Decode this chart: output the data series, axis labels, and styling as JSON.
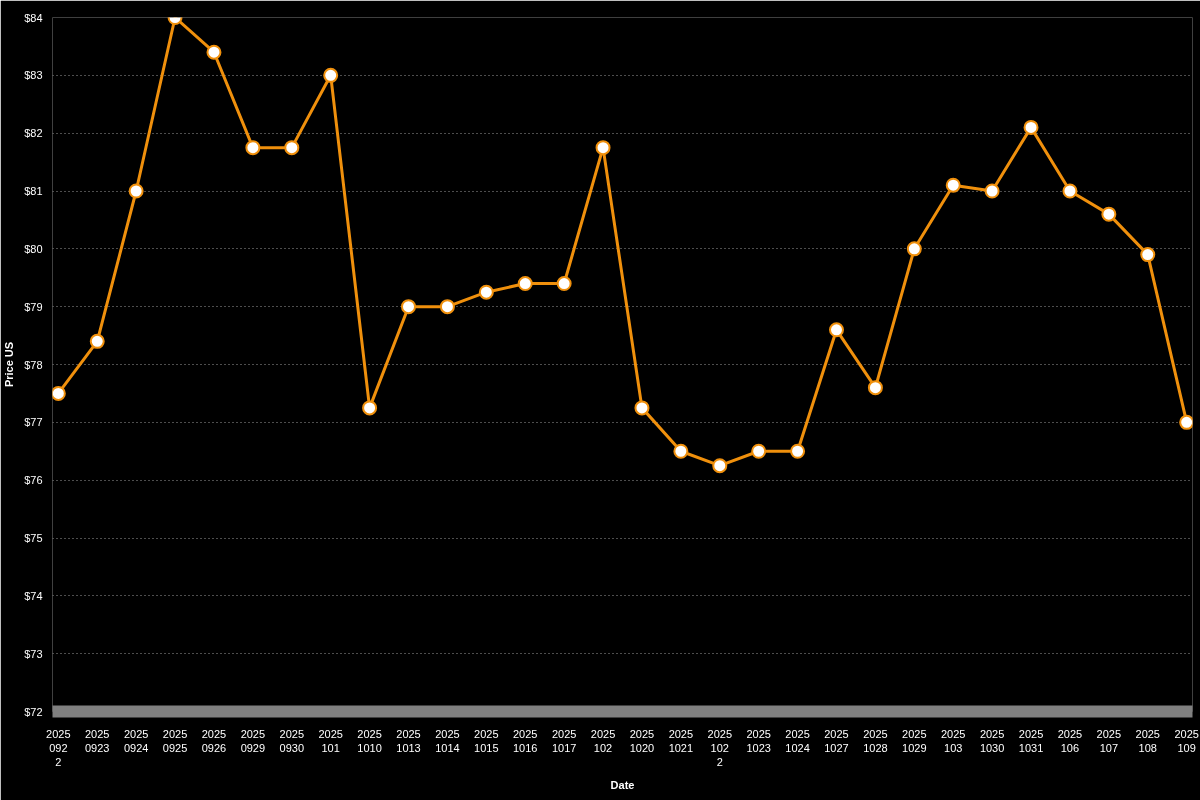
{
  "chart_data": {
    "type": "line",
    "xlabel": "Date",
    "ylabel": "Price US",
    "categories": [
      "2025\n092\n2",
      "2025\n0923",
      "2025\n0924",
      "2025\n0925",
      "2025\n0926",
      "2025\n0929",
      "2025\n0930",
      "2025\n101",
      "2025\n1010",
      "2025\n1013",
      "2025\n1014",
      "2025\n1015",
      "2025\n1016",
      "2025\n1017",
      "2025\n102",
      "2025\n1020",
      "2025\n1021",
      "2025\n102\n2",
      "2025\n1023",
      "2025\n1024",
      "2025\n1027",
      "2025\n1028",
      "2025\n1029",
      "2025\n103",
      "2025\n1030",
      "2025\n1031",
      "2025\n106",
      "2025\n107",
      "2025\n108",
      "2025\n109"
    ],
    "series": [
      {
        "color": "#f0900c",
        "values": [
          77.5,
          78.4,
          81,
          84,
          83.4,
          81.75,
          81.75,
          83,
          77.25,
          79,
          79,
          79.25,
          79.4,
          79.4,
          81.75,
          77.25,
          76.5,
          76.25,
          76.5,
          76.5,
          78.6,
          77.6,
          80,
          81.1,
          81,
          82.1,
          81,
          80.6,
          79.9,
          77
        ]
      }
    ],
    "ylim": [
      72,
      84
    ],
    "yticks": [
      {
        "value": 72,
        "label": "$72"
      },
      {
        "value": 73,
        "label": "$73"
      },
      {
        "value": 74,
        "label": "$74"
      },
      {
        "value": 75,
        "label": "$75"
      },
      {
        "value": 76,
        "label": "$76"
      },
      {
        "value": 77,
        "label": "$77"
      },
      {
        "value": 78,
        "label": "$78"
      },
      {
        "value": 79,
        "label": "$79"
      },
      {
        "value": 80,
        "label": "$80"
      },
      {
        "value": 81,
        "label": "$81"
      },
      {
        "value": 82,
        "label": "$82"
      },
      {
        "value": 83,
        "label": "$83"
      },
      {
        "value": 84,
        "label": "$84"
      }
    ],
    "grid": "y",
    "marker": "circle",
    "line_style": "solid"
  }
}
